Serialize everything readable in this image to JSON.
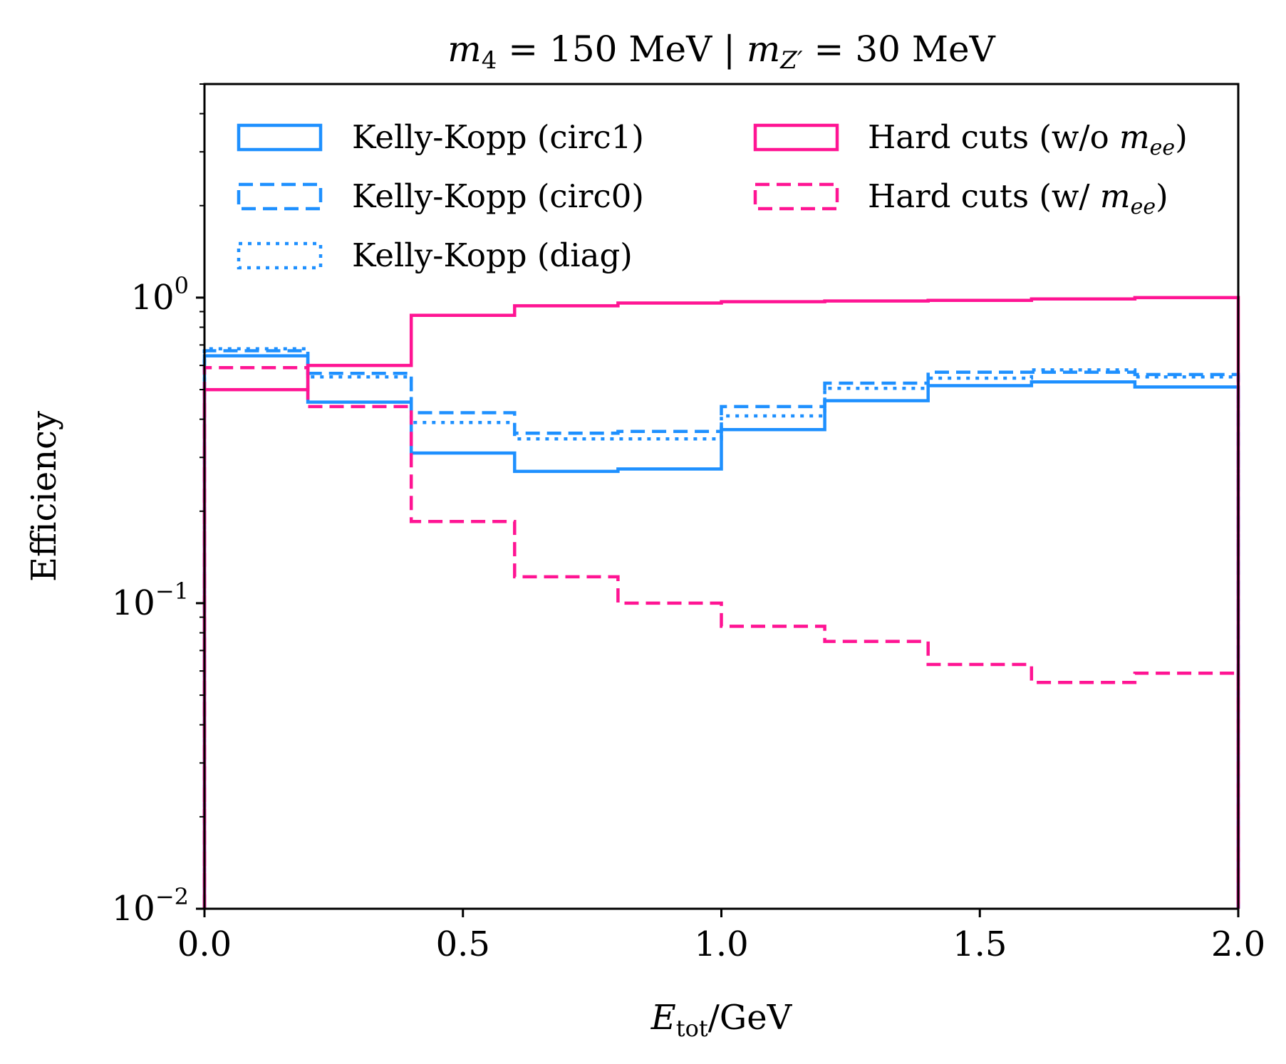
{
  "chart_data": {
    "type": "step",
    "title": "m_4 = 150 MeV | m_Z' = 30 MeV",
    "title_parts": {
      "m4_symbol": "m",
      "m4_sub": "4",
      "m4_value": " = 150 MeV | ",
      "mz_symbol": "m",
      "mz_sub": "Z′",
      "mz_value": " = 30 MeV"
    },
    "xlabel": "E_tot/GeV",
    "xlabel_parts": {
      "symbol": "E",
      "sub": "tot",
      "rest": "/GeV"
    },
    "ylabel": "Efficiency",
    "xlim": [
      0.0,
      2.0
    ],
    "ylim": [
      0.01,
      5.0
    ],
    "yscale": "log",
    "x_ticks": [
      0.0,
      0.5,
      1.0,
      1.5,
      2.0
    ],
    "x_tick_labels": [
      "0.0",
      "0.5",
      "1.0",
      "1.5",
      "2.0"
    ],
    "y_ticks": [
      {
        "value": 1.0,
        "base": "10",
        "exp": "0"
      },
      {
        "value": 0.1,
        "base": "10",
        "exp": "−1"
      },
      {
        "value": 0.01,
        "base": "10",
        "exp": "−2"
      }
    ],
    "bin_edges": [
      0.0,
      0.2,
      0.4,
      0.6,
      0.8,
      1.0,
      1.2,
      1.4,
      1.6,
      1.8,
      2.0
    ],
    "legend_position": "top",
    "series": [
      {
        "id": "kk-circ1",
        "name": "Kelly-Kopp (circ1)",
        "color": "#1e90ff",
        "linestyle": "solid",
        "values": [
          0.645,
          0.455,
          0.31,
          0.27,
          0.275,
          0.37,
          0.46,
          0.515,
          0.53,
          0.51
        ]
      },
      {
        "id": "kk-circ0",
        "name": "Kelly-Kopp (circ0)",
        "color": "#1e90ff",
        "linestyle": "dashed",
        "values": [
          0.67,
          0.565,
          0.42,
          0.36,
          0.365,
          0.44,
          0.525,
          0.57,
          0.57,
          0.56
        ]
      },
      {
        "id": "kk-diag",
        "name": "Kelly-Kopp (diag)",
        "color": "#1e90ff",
        "linestyle": "dotted",
        "values": [
          0.68,
          0.55,
          0.39,
          0.345,
          0.345,
          0.41,
          0.505,
          0.545,
          0.58,
          0.55
        ]
      },
      {
        "id": "hc-wo",
        "name": "Hard cuts (w/o m_ee)",
        "name_prefix": "Hard cuts (w/o ",
        "name_sym": "m",
        "name_sub": "ee",
        "name_suffix": ")",
        "color": "#ff1493",
        "linestyle": "solid",
        "values": [
          0.5,
          0.6,
          0.875,
          0.94,
          0.96,
          0.97,
          0.975,
          0.98,
          0.99,
          1.0
        ]
      },
      {
        "id": "hc-w",
        "name": "Hard cuts (w/ m_ee)",
        "name_prefix": "Hard cuts (w/ ",
        "name_sym": "m",
        "name_sub": "ee",
        "name_suffix": ")",
        "color": "#ff1493",
        "linestyle": "dashed",
        "values": [
          0.59,
          0.44,
          0.185,
          0.122,
          0.1,
          0.084,
          0.075,
          0.063,
          0.055,
          0.059
        ]
      }
    ]
  }
}
